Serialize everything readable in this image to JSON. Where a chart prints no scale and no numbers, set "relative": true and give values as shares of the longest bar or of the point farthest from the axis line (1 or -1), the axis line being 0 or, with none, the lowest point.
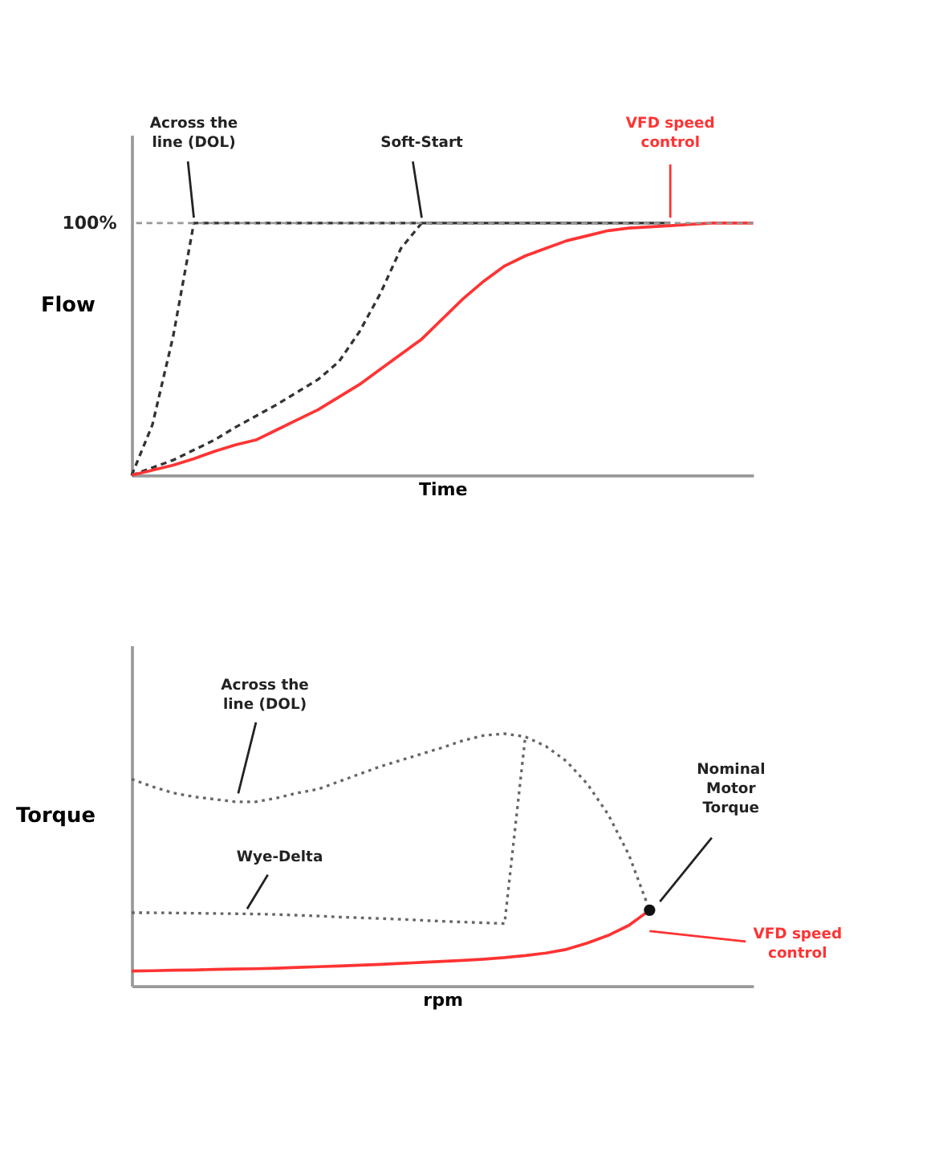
{
  "chart_data": [
    {
      "type": "line",
      "relative": true,
      "xlabel": "Time",
      "ylabel": "Flow",
      "tick_labels": false,
      "grid": false,
      "marker": "none",
      "categories": [
        null,
        null,
        null,
        null,
        null,
        null,
        null,
        null,
        null,
        null,
        null,
        null,
        null,
        null,
        null,
        null,
        null,
        null,
        null,
        null,
        null,
        null,
        null,
        null,
        null,
        null,
        null,
        null,
        null,
        null,
        null
      ],
      "ref_lines": [
        {
          "axis": "y",
          "value": 1,
          "label": "100%",
          "color": "#999999",
          "line_style": "dashed"
        }
      ],
      "series": [
        {
          "color": "#333333",
          "line_style": "dashed",
          "values": [
            0,
            0.2,
            0.55,
            1,
            1,
            1,
            1,
            1,
            1,
            1,
            1,
            1,
            1,
            1,
            1,
            1,
            1,
            1,
            1,
            1,
            1,
            1,
            1,
            1,
            1,
            1,
            1,
            null,
            null,
            null,
            null
          ]
        },
        {
          "color": "#333333",
          "line_style": "dashed",
          "values": [
            0,
            0.03,
            0.06,
            0.1,
            0.14,
            0.19,
            0.235,
            0.28,
            0.33,
            0.38,
            0.45,
            0.57,
            0.72,
            0.9,
            1,
            1,
            1,
            1,
            1,
            1,
            1,
            1,
            1,
            1,
            1,
            1,
            1,
            null,
            null,
            null,
            null
          ]
        },
        {
          "color": "#ff3333",
          "line_style": "solid",
          "values": [
            0,
            0.02,
            0.04,
            0.065,
            0.095,
            0.12,
            0.14,
            0.18,
            0.22,
            0.26,
            0.31,
            0.36,
            0.42,
            0.48,
            0.54,
            0.62,
            0.7,
            0.77,
            0.83,
            0.87,
            0.9,
            0.93,
            0.95,
            0.97,
            0.98,
            0.985,
            0.99,
            0.995,
            1,
            1,
            1
          ]
        }
      ],
      "annotations": [
        "Across the line (DOL)",
        "Soft-Start",
        "VFD speed control"
      ]
    },
    {
      "type": "line",
      "relative": true,
      "xlabel": "rpm",
      "ylabel": "Torque",
      "tick_labels": false,
      "grid": false,
      "marker": "none",
      "categories": [
        null,
        null,
        null,
        null,
        null,
        null,
        null,
        null,
        null,
        null,
        null,
        null,
        null,
        null,
        null,
        null,
        null,
        null,
        null,
        null,
        null,
        null,
        null,
        null,
        null,
        null,
        null,
        null,
        null,
        null,
        null
      ],
      "series": [
        {
          "color": "#666666",
          "line_style": "dotted",
          "values": [
            0.82,
            0.79,
            0.765,
            0.75,
            0.74,
            0.73,
            0.73,
            0.745,
            0.765,
            0.78,
            0.81,
            0.84,
            0.87,
            0.895,
            0.92,
            0.945,
            0.973,
            0.993,
            1,
            0.988,
            0.95,
            0.89,
            0.8,
            0.68,
            0.52,
            0.3,
            null,
            null,
            null,
            null,
            null
          ]
        },
        {
          "color": "#666666",
          "line_style": "dotted",
          "values": [
            0.29,
            0.29,
            0.289,
            0.288,
            0.287,
            0.286,
            0.285,
            0.283,
            0.28,
            0.277,
            0.273,
            0.27,
            0.267,
            0.264,
            0.26,
            0.256,
            0.253,
            0.25,
            0.247,
            0.988,
            null,
            null,
            null,
            null,
            null,
            null,
            null,
            null,
            null,
            null,
            null
          ]
        },
        {
          "color": "#ff3333",
          "line_style": "solid",
          "values": [
            0.059,
            0.06,
            0.062,
            0.063,
            0.065,
            0.067,
            0.068,
            0.07,
            0.073,
            0.076,
            0.079,
            0.082,
            0.085,
            0.089,
            0.093,
            0.097,
            0.101,
            0.106,
            0.112,
            0.12,
            0.13,
            0.145,
            0.17,
            0.2,
            0.24,
            0.3,
            null,
            null,
            null,
            null,
            null
          ]
        },
        {
          "type": "scatter",
          "marker": "circle",
          "color": "#111111",
          "values": [
            null,
            null,
            null,
            null,
            null,
            null,
            null,
            null,
            null,
            null,
            null,
            null,
            null,
            null,
            null,
            null,
            null,
            null,
            null,
            null,
            null,
            null,
            null,
            null,
            null,
            0.3,
            null,
            null,
            null,
            null,
            null
          ]
        }
      ],
      "annotations": [
        "Across the line (DOL)",
        "Wye-Delta",
        "Nominal Motor Torque",
        "VFD speed control"
      ]
    }
  ]
}
